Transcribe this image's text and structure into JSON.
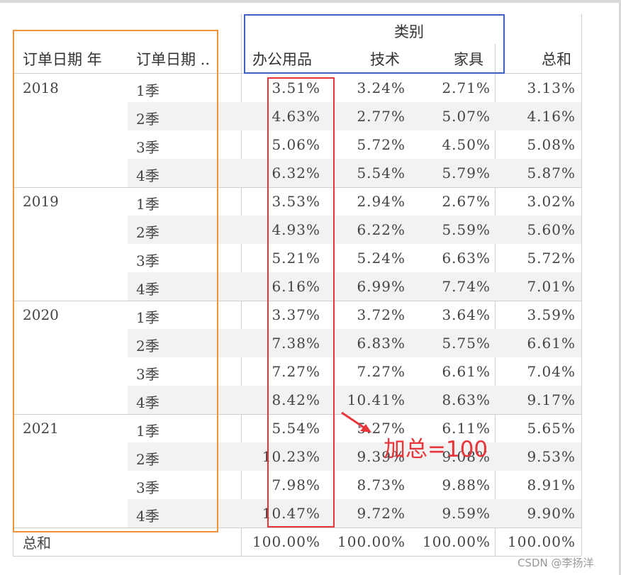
{
  "header": {
    "col_year": "订单日期 年",
    "col_quarter": "订单日期 ..",
    "group_label": "类别",
    "categories": [
      "办公用品",
      "技术",
      "家具"
    ],
    "total_label": "总和"
  },
  "years": [
    {
      "label": "2018",
      "rows": [
        {
          "q": "1季",
          "v": [
            "3.51%",
            "3.24%",
            "2.71%",
            "3.13%"
          ]
        },
        {
          "q": "2季",
          "v": [
            "4.63%",
            "2.77%",
            "5.07%",
            "4.16%"
          ]
        },
        {
          "q": "3季",
          "v": [
            "5.06%",
            "5.72%",
            "4.50%",
            "5.08%"
          ]
        },
        {
          "q": "4季",
          "v": [
            "6.32%",
            "5.54%",
            "5.79%",
            "5.87%"
          ]
        }
      ]
    },
    {
      "label": "2019",
      "rows": [
        {
          "q": "1季",
          "v": [
            "3.53%",
            "2.94%",
            "2.67%",
            "3.02%"
          ]
        },
        {
          "q": "2季",
          "v": [
            "4.93%",
            "6.22%",
            "5.59%",
            "5.60%"
          ]
        },
        {
          "q": "3季",
          "v": [
            "5.21%",
            "5.24%",
            "6.63%",
            "5.72%"
          ]
        },
        {
          "q": "4季",
          "v": [
            "6.16%",
            "6.99%",
            "7.74%",
            "7.01%"
          ]
        }
      ]
    },
    {
      "label": "2020",
      "rows": [
        {
          "q": "1季",
          "v": [
            "3.37%",
            "3.72%",
            "3.64%",
            "3.59%"
          ]
        },
        {
          "q": "2季",
          "v": [
            "7.38%",
            "6.83%",
            "5.75%",
            "6.61%"
          ]
        },
        {
          "q": "3季",
          "v": [
            "7.27%",
            "7.27%",
            "6.61%",
            "7.04%"
          ]
        },
        {
          "q": "4季",
          "v": [
            "8.42%",
            "10.41%",
            "8.63%",
            "9.17%"
          ]
        }
      ]
    },
    {
      "label": "2021",
      "rows": [
        {
          "q": "1季",
          "v": [
            "5.54%",
            "5.27%",
            "6.11%",
            "5.65%"
          ]
        },
        {
          "q": "2季",
          "v": [
            "10.23%",
            "9.39%",
            "9.08%",
            "9.53%"
          ]
        },
        {
          "q": "3季",
          "v": [
            "7.98%",
            "8.73%",
            "9.88%",
            "8.91%"
          ]
        },
        {
          "q": "4季",
          "v": [
            "10.47%",
            "9.72%",
            "9.59%",
            "9.90%"
          ]
        }
      ]
    }
  ],
  "total_row": {
    "label": "总和",
    "v": [
      "100.00%",
      "100.00%",
      "100.00%",
      "100.00%"
    ]
  },
  "annotation": "加总=100",
  "watermark": "CSDN @李扬洋",
  "colors": {
    "orange_box": "#f0923c",
    "blue_box": "#3f5fc9",
    "red_box": "#e8353a"
  }
}
